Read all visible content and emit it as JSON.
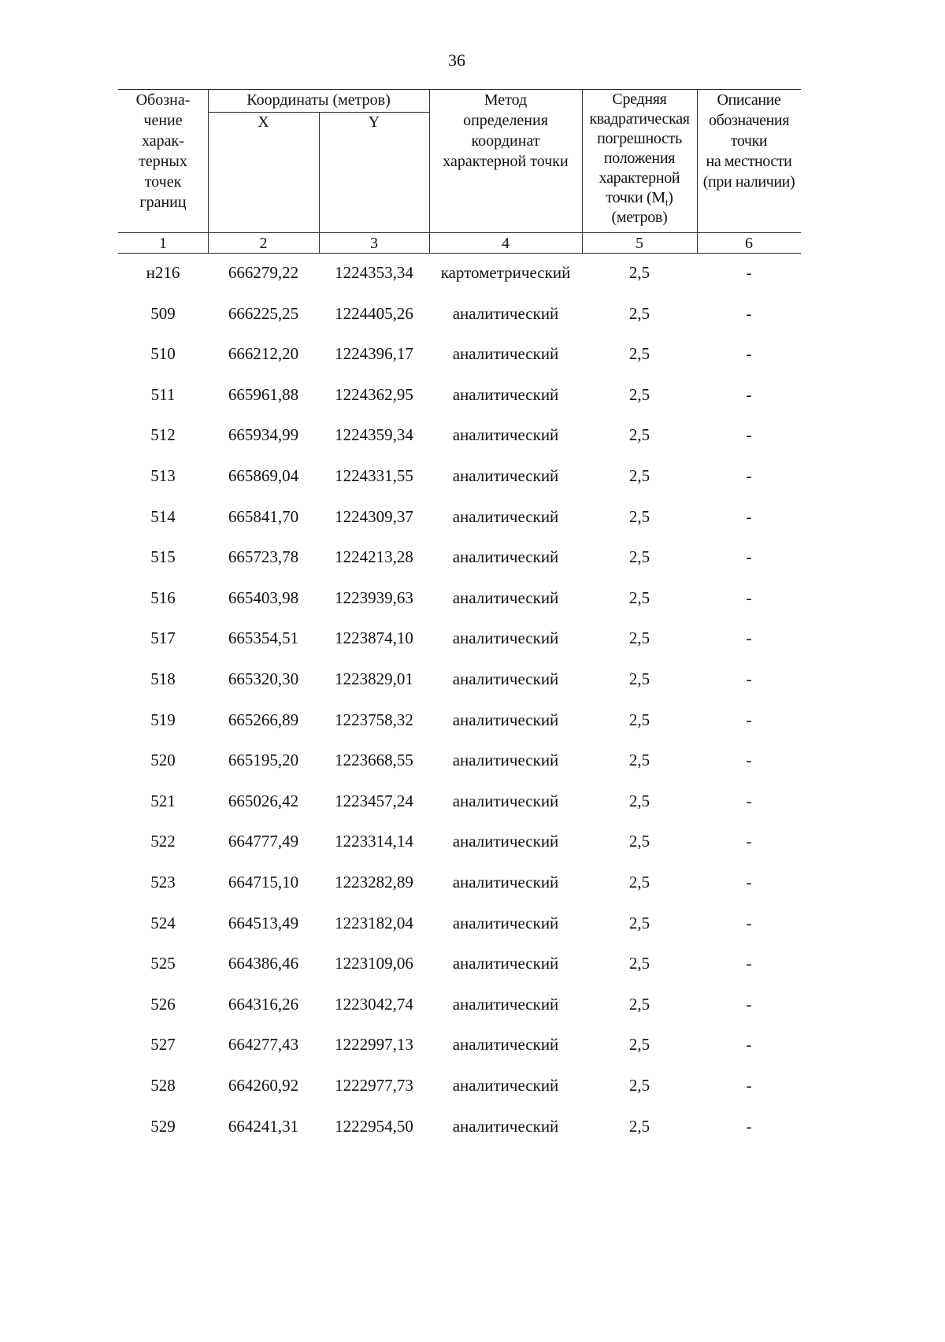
{
  "page_number": "36",
  "header": {
    "col1": "Обозна-\nчение\nхарак-\nтерных\nточек\nграниц",
    "coords_group": "Координаты (метров)",
    "col2": "X",
    "col3": "Y",
    "col4": "Метод\nопределения\nкоординат\nхарактерной точки",
    "col5_lines": [
      "Средняя",
      "квадратическая",
      "погрешность",
      "положения",
      "характерной",
      "точки (M",
      "t",
      ")",
      "(метров)"
    ],
    "col6": "Описание\nобозначения\nточки\nна местности\n(при наличии)"
  },
  "column_numbers": [
    "1",
    "2",
    "3",
    "4",
    "5",
    "6"
  ],
  "rows": [
    [
      "н216",
      "666279,22",
      "1224353,34",
      "картометрический",
      "2,5",
      "-"
    ],
    [
      "509",
      "666225,25",
      "1224405,26",
      "аналитический",
      "2,5",
      "-"
    ],
    [
      "510",
      "666212,20",
      "1224396,17",
      "аналитический",
      "2,5",
      "-"
    ],
    [
      "511",
      "665961,88",
      "1224362,95",
      "аналитический",
      "2,5",
      "-"
    ],
    [
      "512",
      "665934,99",
      "1224359,34",
      "аналитический",
      "2,5",
      "-"
    ],
    [
      "513",
      "665869,04",
      "1224331,55",
      "аналитический",
      "2,5",
      "-"
    ],
    [
      "514",
      "665841,70",
      "1224309,37",
      "аналитический",
      "2,5",
      "-"
    ],
    [
      "515",
      "665723,78",
      "1224213,28",
      "аналитический",
      "2,5",
      "-"
    ],
    [
      "516",
      "665403,98",
      "1223939,63",
      "аналитический",
      "2,5",
      "-"
    ],
    [
      "517",
      "665354,51",
      "1223874,10",
      "аналитический",
      "2,5",
      "-"
    ],
    [
      "518",
      "665320,30",
      "1223829,01",
      "аналитический",
      "2,5",
      "-"
    ],
    [
      "519",
      "665266,89",
      "1223758,32",
      "аналитический",
      "2,5",
      "-"
    ],
    [
      "520",
      "665195,20",
      "1223668,55",
      "аналитический",
      "2,5",
      "-"
    ],
    [
      "521",
      "665026,42",
      "1223457,24",
      "аналитический",
      "2,5",
      "-"
    ],
    [
      "522",
      "664777,49",
      "1223314,14",
      "аналитический",
      "2,5",
      "-"
    ],
    [
      "523",
      "664715,10",
      "1223282,89",
      "аналитический",
      "2,5",
      "-"
    ],
    [
      "524",
      "664513,49",
      "1223182,04",
      "аналитический",
      "2,5",
      "-"
    ],
    [
      "525",
      "664386,46",
      "1223109,06",
      "аналитический",
      "2,5",
      "-"
    ],
    [
      "526",
      "664316,26",
      "1223042,74",
      "аналитический",
      "2,5",
      "-"
    ],
    [
      "527",
      "664277,43",
      "1222997,13",
      "аналитический",
      "2,5",
      "-"
    ],
    [
      "528",
      "664260,92",
      "1222977,73",
      "аналитический",
      "2,5",
      "-"
    ],
    [
      "529",
      "664241,31",
      "1222954,50",
      "аналитический",
      "2,5",
      "-"
    ]
  ]
}
